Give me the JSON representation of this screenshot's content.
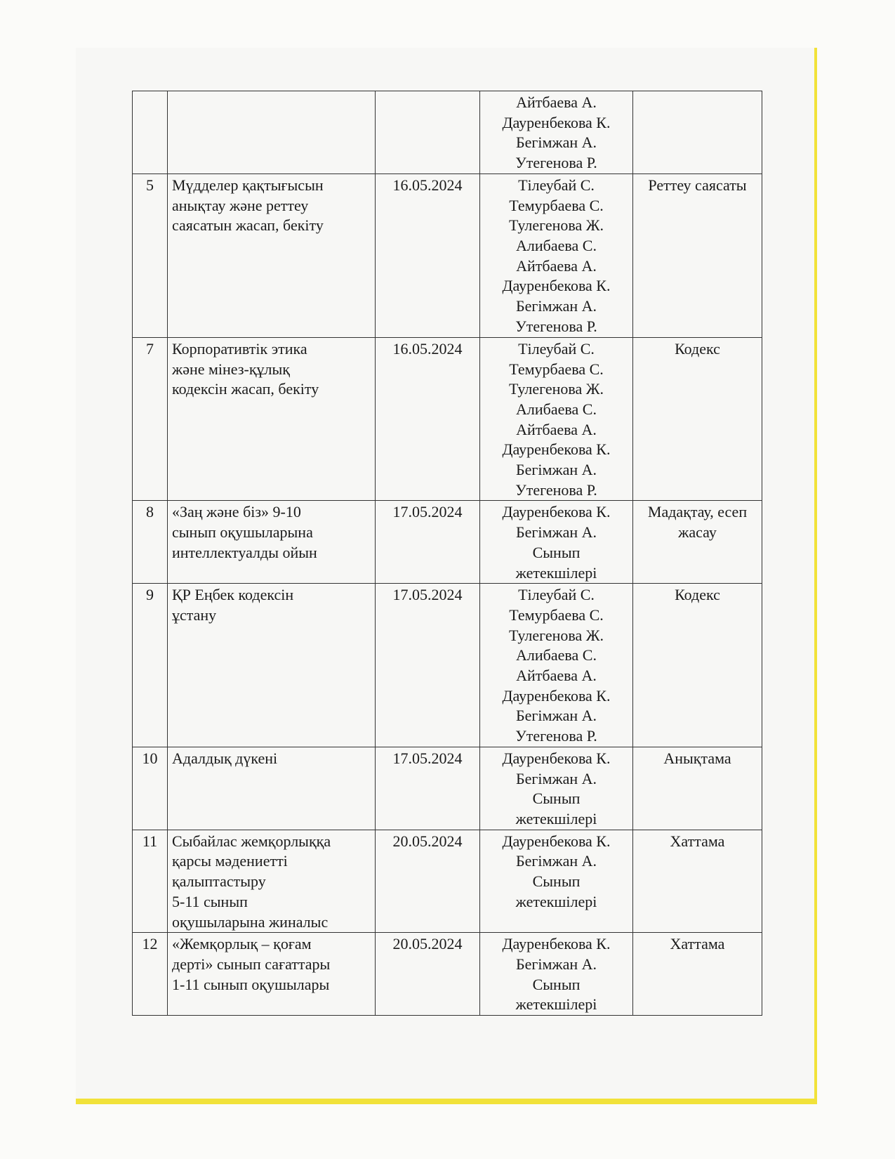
{
  "rows": [
    {
      "num": "",
      "task": [],
      "date": "",
      "responsible": [
        "Айтбаева А.",
        "Дауренбекова К.",
        "Бегімжан А.",
        "Утегенова Р."
      ],
      "result": []
    },
    {
      "num": "5",
      "task": [
        "Мүдделер қақтығысын",
        "анықтау және реттеу",
        "саясатын жасап, бекіту"
      ],
      "date": "16.05.2024",
      "responsible": [
        "Тілеубай С.",
        "Темурбаева С.",
        "Тулегенова Ж.",
        "Алибаева С.",
        "Айтбаева А.",
        "Дауренбекова К.",
        "Бегімжан А.",
        "Утегенова Р."
      ],
      "result": [
        "Реттеу саясаты"
      ]
    },
    {
      "num": "7",
      "task": [
        "Корпоративтік этика",
        "және мінез-құлық",
        "кодексін жасап, бекіту"
      ],
      "date": "16.05.2024",
      "responsible": [
        "Тілеубай С.",
        "Темурбаева С.",
        "Тулегенова Ж.",
        "Алибаева С.",
        "Айтбаева А.",
        "Дауренбекова К.",
        "Бегімжан А.",
        "Утегенова Р."
      ],
      "result": [
        "Кодекс"
      ]
    },
    {
      "num": "8",
      "task": [
        "«Заң және біз» 9-10",
        "сынып оқушыларына",
        "интеллектуалды ойын"
      ],
      "date": "17.05.2024",
      "responsible": [
        "Дауренбекова К.",
        "Бегімжан А.",
        "Сынып",
        "жетекшілері"
      ],
      "result": [
        "Мадақтау, есеп",
        "жасау"
      ]
    },
    {
      "num": "9",
      "task": [
        "ҚР Еңбек кодексін",
        "ұстану"
      ],
      "date": "17.05.2024",
      "responsible": [
        "Тілеубай С.",
        "Темурбаева С.",
        "Тулегенова Ж.",
        "Алибаева С.",
        "Айтбаева А.",
        "Дауренбекова К.",
        "Бегімжан А.",
        "Утегенова Р."
      ],
      "result": [
        "Кодекс"
      ]
    },
    {
      "num": "10",
      "task": [
        "Адалдық дүкені"
      ],
      "date": "17.05.2024",
      "responsible": [
        "Дауренбекова К.",
        "Бегімжан А.",
        "Сынып",
        "жетекшілері"
      ],
      "result": [
        "Анықтама"
      ]
    },
    {
      "num": "11",
      "task": [
        "Сыбайлас жемқорлыққа",
        "қарсы мәдениетті",
        "қалыптастыру",
        "5-11 сынып",
        "оқушыларына жиналыс"
      ],
      "date": "20.05.2024",
      "responsible": [
        "Дауренбекова К.",
        "Бегімжан А.",
        "Сынып",
        "жетекшілері"
      ],
      "result": [
        "Хаттама"
      ]
    },
    {
      "num": "12",
      "task": [
        "«Жемқорлық – қоғам",
        "дерті» сынып сағаттары",
        "1-11 сынып оқушылары"
      ],
      "date": "20.05.2024",
      "responsible": [
        "Дауренбекова К.",
        "Бегімжан А.",
        "Сынып",
        "жетекшілері"
      ],
      "result": [
        "Хаттама"
      ]
    }
  ]
}
